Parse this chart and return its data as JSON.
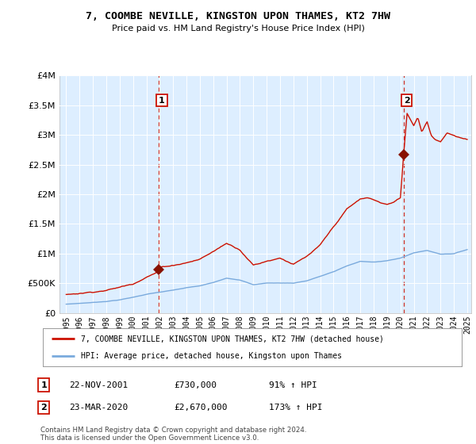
{
  "title": "7, COOMBE NEVILLE, KINGSTON UPON THAMES, KT2 7HW",
  "subtitle": "Price paid vs. HM Land Registry's House Price Index (HPI)",
  "legend_line1": "7, COOMBE NEVILLE, KINGSTON UPON THAMES, KT2 7HW (detached house)",
  "legend_line2": "HPI: Average price, detached house, Kingston upon Thames",
  "annotation1_label": "1",
  "annotation1_date": "22-NOV-2001",
  "annotation1_price": "£730,000",
  "annotation1_hpi": "91% ↑ HPI",
  "annotation2_label": "2",
  "annotation2_date": "23-MAR-2020",
  "annotation2_price": "£2,670,000",
  "annotation2_hpi": "173% ↑ HPI",
  "footer": "Contains HM Land Registry data © Crown copyright and database right 2024.\nThis data is licensed under the Open Government Licence v3.0.",
  "hpi_line_color": "#7aaadd",
  "price_line_color": "#cc1100",
  "marker_color": "#881100",
  "vline_color": "#cc1100",
  "plot_bg": "#ddeeff",
  "grid_color": "#ffffff",
  "ylim": [
    0,
    4000000
  ],
  "yticks": [
    0,
    500000,
    1000000,
    1500000,
    2000000,
    2500000,
    3000000,
    3500000,
    4000000
  ],
  "year_start": 1995,
  "year_end": 2025,
  "sale1_year": 2001.9,
  "sale1_value": 730000,
  "sale2_year": 2020.23,
  "sale2_value": 2670000,
  "hpi_anchors_x": [
    1995,
    1996,
    1997,
    1998,
    1999,
    2000,
    2001,
    2002,
    2003,
    2004,
    2005,
    2006,
    2007,
    2008,
    2009,
    2010,
    2011,
    2012,
    2013,
    2014,
    2015,
    2016,
    2017,
    2018,
    2019,
    2020,
    2021,
    2022,
    2023,
    2024,
    2025
  ],
  "hpi_anchors_y": [
    148000,
    162000,
    178000,
    198000,
    225000,
    268000,
    320000,
    355000,
    385000,
    425000,
    455000,
    510000,
    590000,
    560000,
    480000,
    510000,
    510000,
    510000,
    550000,
    625000,
    700000,
    800000,
    875000,
    860000,
    890000,
    930000,
    1020000,
    1060000,
    1000000,
    1010000,
    1080000
  ],
  "price_anchors_x": [
    1995,
    1996,
    1997,
    1998,
    1999,
    2000,
    2001,
    2001.9,
    2002,
    2003,
    2004,
    2005,
    2006,
    2007,
    2008,
    2009,
    2009.5,
    2010,
    2011,
    2012,
    2013,
    2014,
    2015,
    2016,
    2017,
    2017.5,
    2018,
    2018.5,
    2019,
    2019.5,
    2020.0,
    2020.23,
    2020.5,
    2021.0,
    2021.3,
    2021.6,
    2022.0,
    2022.3,
    2022.6,
    2023.0,
    2023.5,
    2024.0,
    2024.5,
    2025.0
  ],
  "price_anchors_y": [
    310000,
    335000,
    365000,
    400000,
    450000,
    510000,
    640000,
    730000,
    800000,
    840000,
    890000,
    950000,
    1080000,
    1220000,
    1120000,
    870000,
    900000,
    940000,
    1000000,
    900000,
    1020000,
    1200000,
    1500000,
    1800000,
    1960000,
    1980000,
    1950000,
    1900000,
    1870000,
    1900000,
    1980000,
    2670000,
    3400000,
    3200000,
    3350000,
    3100000,
    3280000,
    3050000,
    2980000,
    2950000,
    3100000,
    3050000,
    3000000,
    2980000
  ]
}
